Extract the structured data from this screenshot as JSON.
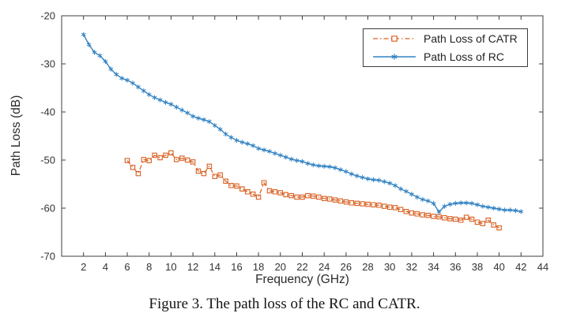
{
  "figure": {
    "caption": "Figure 3. The path loss of the RC and CATR."
  },
  "legend": {
    "items": [
      {
        "label": "Path Loss of CATR"
      },
      {
        "label": "Path Loss of RC"
      }
    ]
  },
  "chart_data": {
    "type": "line",
    "title": "",
    "xlabel": "Frequency (GHz)",
    "ylabel": "Path Loss (dB)",
    "xlim": [
      0,
      44
    ],
    "ylim": [
      -70,
      -20
    ],
    "xticks": [
      2,
      4,
      6,
      8,
      10,
      12,
      14,
      16,
      18,
      20,
      22,
      24,
      26,
      28,
      30,
      32,
      34,
      36,
      38,
      40,
      42,
      44
    ],
    "yticks": [
      -70,
      -60,
      -50,
      -40,
      -30,
      -20
    ],
    "grid": false,
    "legend_position": "northeast",
    "axis_color": "#3c3c3c",
    "text_color": "#333333",
    "series": [
      {
        "name": "Path Loss of CATR",
        "key": "catr",
        "color": "#d85f20",
        "line_style": "dash-dot",
        "dash": "6 3 1.5 3",
        "line_width": 1.2,
        "marker": "square",
        "x": [
          6,
          6.5,
          7,
          7.5,
          8,
          8.5,
          9,
          9.5,
          10,
          10.5,
          11,
          11.5,
          12,
          12.5,
          13,
          13.5,
          14,
          14.5,
          15,
          15.5,
          16,
          16.5,
          17,
          17.5,
          18,
          18.5,
          19,
          19.5,
          20,
          20.5,
          21,
          21.5,
          22,
          22.5,
          23,
          23.5,
          24,
          24.5,
          25,
          25.5,
          26,
          26.5,
          27,
          27.5,
          28,
          28.5,
          29,
          29.5,
          30,
          30.5,
          31,
          31.5,
          32,
          32.5,
          33,
          33.5,
          34,
          34.5,
          35,
          35.5,
          36,
          36.5,
          37,
          37.5,
          38,
          38.5,
          39,
          39.5,
          40
        ],
        "y": [
          -50.1,
          -51.5,
          -52.8,
          -49.9,
          -50.1,
          -49.0,
          -49.5,
          -49.0,
          -48.5,
          -49.9,
          -49.6,
          -50.0,
          -50.4,
          -52.3,
          -52.8,
          -51.3,
          -53.4,
          -53.1,
          -54.4,
          -55.3,
          -55.4,
          -56.0,
          -56.6,
          -57.1,
          -57.7,
          -54.7,
          -56.4,
          -56.6,
          -56.8,
          -57.2,
          -57.4,
          -57.7,
          -57.7,
          -57.4,
          -57.5,
          -57.7,
          -58.0,
          -58.1,
          -58.3,
          -58.5,
          -58.7,
          -58.9,
          -59.0,
          -59.1,
          -59.2,
          -59.3,
          -59.4,
          -59.6,
          -59.8,
          -59.9,
          -60.3,
          -60.7,
          -61.0,
          -61.2,
          -61.4,
          -61.5,
          -61.7,
          -61.8,
          -62.0,
          -62.2,
          -62.3,
          -62.5,
          -61.9,
          -62.3,
          -62.9,
          -63.2,
          -62.5,
          -63.5,
          -64.1
        ]
      },
      {
        "name": "Path Loss of RC",
        "key": "rc",
        "color": "#3182c3",
        "line_style": "solid",
        "dash": "",
        "line_width": 1.4,
        "marker": "asterisk",
        "x": [
          2,
          2.5,
          3,
          3.5,
          4,
          4.5,
          5,
          5.5,
          6,
          6.5,
          7,
          7.5,
          8,
          8.5,
          9,
          9.5,
          10,
          10.5,
          11,
          11.5,
          12,
          12.5,
          13,
          13.5,
          14,
          14.5,
          15,
          15.5,
          16,
          16.5,
          17,
          17.5,
          18,
          18.5,
          19,
          19.5,
          20,
          20.5,
          21,
          21.5,
          22,
          22.5,
          23,
          23.5,
          24,
          24.5,
          25,
          25.5,
          26,
          26.5,
          27,
          27.5,
          28,
          28.5,
          29,
          29.5,
          30,
          30.5,
          31,
          31.5,
          32,
          32.5,
          33,
          33.5,
          34,
          34.5,
          35,
          35.5,
          36,
          36.5,
          37,
          37.5,
          38,
          38.5,
          39,
          39.5,
          40,
          40.5,
          41,
          41.5,
          42
        ],
        "y": [
          -23.9,
          -26.0,
          -27.6,
          -28.3,
          -29.5,
          -31.1,
          -32.2,
          -33.0,
          -33.4,
          -34.0,
          -34.8,
          -35.6,
          -36.4,
          -37.0,
          -37.5,
          -38.0,
          -38.4,
          -39.0,
          -39.6,
          -40.2,
          -40.9,
          -41.3,
          -41.6,
          -42.0,
          -42.8,
          -43.6,
          -44.6,
          -45.3,
          -45.9,
          -46.3,
          -46.6,
          -47.0,
          -47.6,
          -47.9,
          -48.2,
          -48.6,
          -49.0,
          -49.4,
          -49.8,
          -50.1,
          -50.3,
          -50.7,
          -51.0,
          -51.2,
          -51.3,
          -51.4,
          -51.6,
          -52.0,
          -52.4,
          -52.9,
          -53.3,
          -53.6,
          -53.9,
          -54.1,
          -54.2,
          -54.5,
          -54.8,
          -55.3,
          -56.0,
          -56.5,
          -57.1,
          -57.7,
          -58.2,
          -58.5,
          -59.0,
          -60.8,
          -59.6,
          -59.2,
          -59.0,
          -58.9,
          -58.9,
          -59.0,
          -59.3,
          -59.6,
          -59.8,
          -60.0,
          -60.2,
          -60.4,
          -60.4,
          -60.5,
          -60.7
        ]
      }
    ]
  }
}
